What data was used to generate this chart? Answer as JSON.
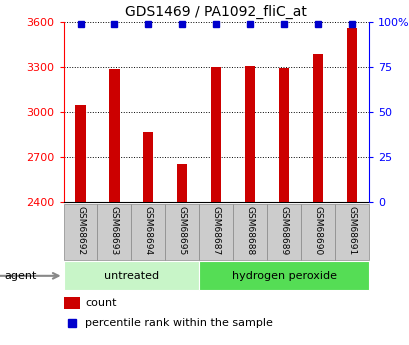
{
  "title": "GDS1469 / PA1092_fliC_at",
  "samples": [
    "GSM68692",
    "GSM68693",
    "GSM68694",
    "GSM68695",
    "GSM68687",
    "GSM68688",
    "GSM68689",
    "GSM68690",
    "GSM68691"
  ],
  "counts": [
    3050,
    3290,
    2870,
    2650,
    3300,
    3310,
    3295,
    3390,
    3560
  ],
  "percentiles": [
    99,
    99,
    99,
    99,
    99,
    99,
    99,
    99,
    99
  ],
  "bar_color": "#cc0000",
  "dot_color": "#0000cc",
  "ylim_left": [
    2400,
    3600
  ],
  "ylim_right": [
    0,
    100
  ],
  "yticks_left": [
    2400,
    2700,
    3000,
    3300,
    3600
  ],
  "yticks_right": [
    0,
    25,
    50,
    75,
    100
  ],
  "yticklabels_right": [
    "0",
    "25",
    "50",
    "75",
    "100%"
  ],
  "groups": [
    {
      "label": "untreated",
      "indices": [
        0,
        1,
        2,
        3
      ],
      "color": "#c8f5c8"
    },
    {
      "label": "hydrogen peroxide",
      "indices": [
        4,
        5,
        6,
        7,
        8
      ],
      "color": "#55dd55"
    }
  ],
  "agent_label": "agent",
  "legend_count_label": "count",
  "legend_pct_label": "percentile rank within the sample",
  "bg_color": "#ffffff",
  "tick_label_bg": "#cccccc",
  "tick_label_border": "#888888"
}
